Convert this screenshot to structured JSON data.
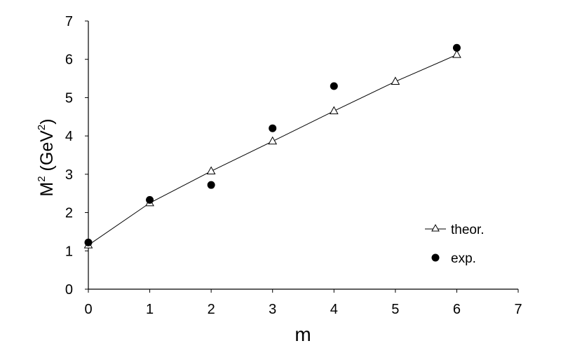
{
  "chart_data": {
    "type": "scatter",
    "title": "",
    "xlabel": "m",
    "ylabel": {
      "base1": "M",
      "sup1": "2",
      "base2": " (GeV",
      "sup2": "2",
      "base3": ")"
    },
    "xlim": [
      0,
      7
    ],
    "ylim": [
      0,
      7
    ],
    "xticks": [
      "0",
      "1",
      "2",
      "3",
      "4",
      "5",
      "6",
      "7"
    ],
    "yticks": [
      "0",
      "1",
      "2",
      "3",
      "4",
      "5",
      "6",
      "7"
    ],
    "grid": false,
    "legend_position": "lower-right",
    "series": [
      {
        "name": "theor.",
        "style": "line-open-triangle",
        "color": "#000000",
        "x": [
          0,
          1,
          2,
          3,
          4,
          5,
          6
        ],
        "y": [
          1.15,
          2.25,
          3.08,
          3.86,
          4.65,
          5.42,
          6.12
        ]
      },
      {
        "name": "exp.",
        "style": "filled-circle",
        "color": "#000000",
        "x": [
          0,
          1,
          2,
          3,
          4,
          6
        ],
        "y": [
          1.22,
          2.33,
          2.72,
          4.2,
          5.3,
          6.3
        ]
      }
    ]
  }
}
